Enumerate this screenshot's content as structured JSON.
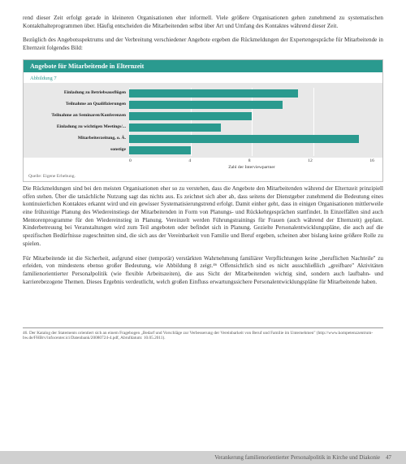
{
  "paragraphs": {
    "p1": "rend dieser Zeit erfolgt gerade in kleineren Organisationen eher informell. Viele größere Organisationen gehen zunehmend zu systematischen Kontakthalteprogrammen über. Häufig entscheiden die Mitarbeitenden selbst über Art und Umfang des Kontaktes während dieser Zeit.",
    "p2": "Bezüglich des Angebotsspektrums und der Verbreitung verschiedener Angebote ergeben die Rückmeldungen der Expertengespräche für Mitarbeitende in Elternzeit folgendes Bild:",
    "p3": "Die Rückmeldungen sind bei den meisten Organisationen eher so zu verstehen, dass die Angebote den Mitarbeitenden während der Elternzeit prinzipiell offen stehen. Über die tatsächliche Nutzung sagt das nichts aus. Es zeichnet sich aber ab, dass seitens der Dienstgeber zunehmend die Bedeutung eines kontinuierlichen Kontaktes erkannt wird und ein gewisser Systematisierungstrend erfolgt. Damit einher geht, dass in einigen Organisationen mittlerweile eine frühzeitige Planung des Wiedereinstiegs der Mitarbeitenden in Form von Planungs- und Rückkehrgesprächen stattfindet. In Einzelfällen sind auch Mentorenprogramme für den Wiedereinstieg in Planung. Vereinzelt werden Führungstrainings für Frauen (auch während der Elternzeit) geplant. Kinderbetreuung bei Veranstaltungen wird zum Teil angeboten oder befindet sich in Planung. Gezielte Personalentwicklungspläne, die auch auf die spezifischen Bedürfnisse zugeschnitten sind, die sich aus der Vereinbarkeit von Familie und Beruf ergeben, scheinen aber bislang keine größere Rolle zu spielen.",
    "p4": "Für Mitarbeitende ist die Sicherheit, aufgrund einer (temporär) verstärkten Wahrnehmung familiärer Verpflichtungen keine „beruflichen Nachteile\" zu erleiden, von mindestens ebenso großer Bedeutung, wie Abbildung 8 zeigt.⁴⁶ Offensichtlich sind es nicht ausschließlich „greifbare\" Aktivitäten familienorientierter Personalpolitik (wie flexible Arbeitszeiten), die aus Sicht der Mitarbeitenden wichtig sind, sondern auch laufbahn- und karrierebezogene Themen. Dieses Ergebnis verdeutlicht, welch großen Einfluss erwartungssichere Personalentwicklungspläne für Mitarbeitende haben."
  },
  "chart": {
    "type": "bar",
    "title": "Angebote für Mitarbeitende in Elternzeit",
    "subtitle": "Abbildung 7",
    "xlabel": "Zahl der Interviewpartner",
    "xlim": [
      0,
      16
    ],
    "xtick_step": 4,
    "ticks": [
      "0",
      "4",
      "8",
      "12",
      "16"
    ],
    "bar_color": "#2a9a8f",
    "plot_bg": "#e8e8e8",
    "grid_color": "#ffffff",
    "items": [
      {
        "label": "Einladung zu Betriebsausflügen",
        "value": 11
      },
      {
        "label": "Teilnahme an Qualifizierungen",
        "value": 10
      },
      {
        "label": "Teilnahme an Seminaren/Konferenzen",
        "value": 8
      },
      {
        "label": "Einladung zu wichtigen Meetings/...",
        "value": 6
      },
      {
        "label": "Mitarbeiterzeitung, o. Ä.",
        "value": 15
      },
      {
        "label": "sonstige",
        "value": 4
      }
    ],
    "source": "Quelle: Eigene Erhebung."
  },
  "footnote": "46. Der Katalog der Statements orientiert sich an einem Fragebogen „Bedarf und Vorschläge zur Verbesserung der Vereinbarkeit von Beruf und Familie im Unternehmen\" (http://www.kompetenzzentrum-bw.de/FHBrv/infocenter.ici/Datenbank/20080724-4.pdf, Abrufdatum: 10.05.2011).",
  "footer": {
    "title": "Verankerung familienorientierter Personalpolitik in Kirche und Diakonie",
    "page": "47"
  }
}
